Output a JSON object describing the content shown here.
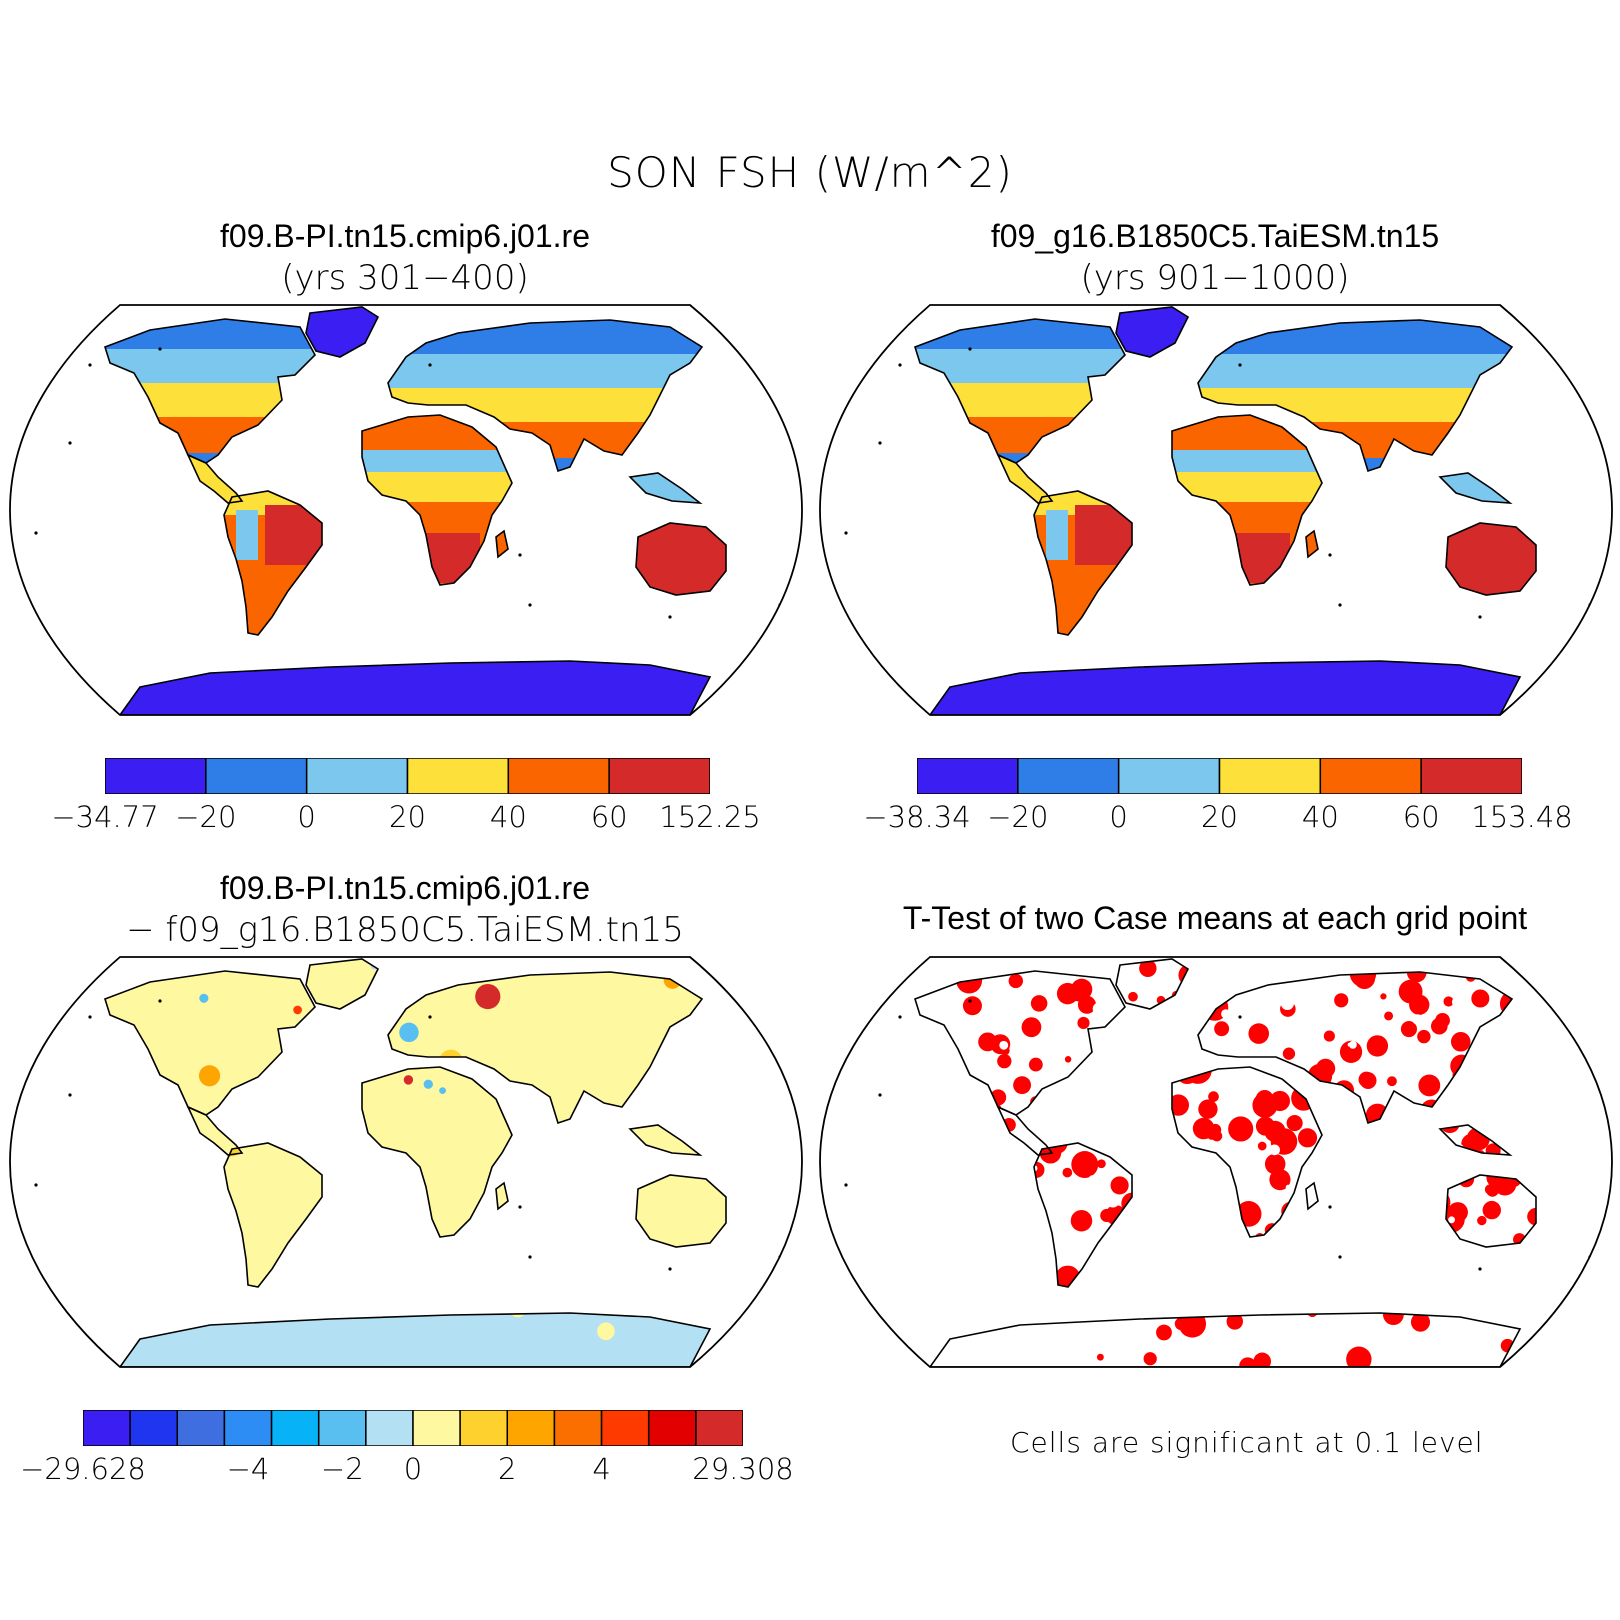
{
  "title": "SON FSH (W/m^2)",
  "panels": [
    {
      "line1": "f09.B-PI.tn15.cmip6.j01.re",
      "line2": "(yrs 301−400)",
      "colorbar": {
        "colors": [
          "#3b1ff2",
          "#2f7ee8",
          "#7cc7ee",
          "#fde03a",
          "#fb6500",
          "#d52a2a"
        ],
        "labels": [
          "−34.77",
          "−20",
          "0",
          "20",
          "40",
          "60",
          "152.25"
        ]
      }
    },
    {
      "line1": "f09_g16.B1850C5.TaiESM.tn15",
      "line2": "(yrs 901−1000)",
      "colorbar": {
        "colors": [
          "#3b1ff2",
          "#2f7ee8",
          "#7cc7ee",
          "#fde03a",
          "#fb6500",
          "#d52a2a"
        ],
        "labels": [
          "−38.34",
          "−20",
          "0",
          "20",
          "40",
          "60",
          "153.48"
        ]
      }
    },
    {
      "line1": "f09.B-PI.tn15.cmip6.j01.re",
      "line2": "− f09_g16.B1850C5.TaiESM.tn15",
      "colorbar": {
        "colors": [
          "#3b1ff2",
          "#1f35ef",
          "#3e6ee0",
          "#2d8df5",
          "#08b2f7",
          "#58bff0",
          "#b3e0f2",
          "#fef8a0",
          "#fed12e",
          "#fea500",
          "#fb6e00",
          "#fe3a00",
          "#e30000",
          "#d52a2a"
        ],
        "labels": [
          "−29.628",
          "−4",
          "−2",
          "0",
          "2",
          "4",
          "29.308"
        ]
      }
    },
    {
      "line1": "T-Test of two Case means at each grid point",
      "note": "Cells are significant at 0.1 level"
    }
  ]
}
